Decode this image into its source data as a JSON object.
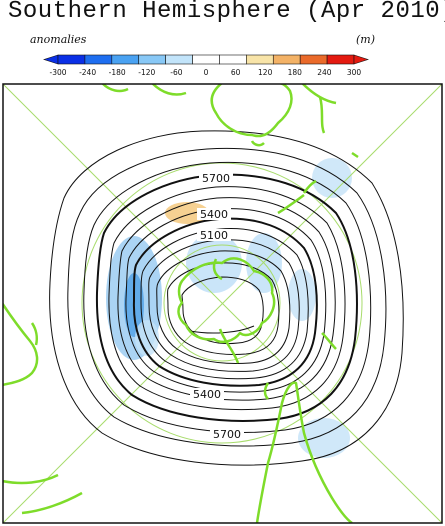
{
  "title": "Southern Hemisphere (Apr 2010)",
  "colorbar": {
    "label_left": "anomalies",
    "label_right": "(m)",
    "ticks": [
      "-300",
      "-240",
      "-180",
      "-120",
      "-60",
      "0",
      "60",
      "120",
      "180",
      "240",
      "300"
    ],
    "colors": [
      "#0a2fe6",
      "#1e6ef0",
      "#4aa2f2",
      "#88c8f6",
      "#c2e4fa",
      "#ffffff",
      "#ffffff",
      "#f8e4a8",
      "#f3b266",
      "#ea6a2a",
      "#e41a10"
    ]
  },
  "map": {
    "contour_labels": [
      "5700",
      "5400",
      "5100",
      "5400",
      "5700"
    ],
    "colors": {
      "coast": "#7edc2a",
      "contour": "#111111",
      "grid": "#a8dc6c",
      "neg_anomaly": "#9ccdf2",
      "neg_anomaly_strong": "#5aa6e8",
      "pos_anomaly": "#f6cf8c"
    }
  }
}
